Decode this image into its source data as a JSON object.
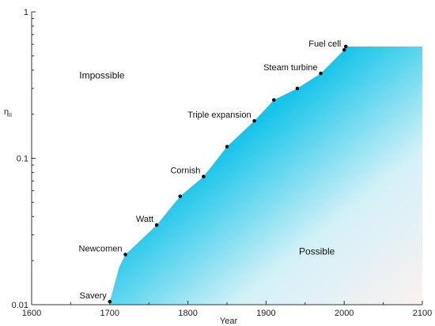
{
  "chart_data": {
    "type": "area",
    "xlabel": "Year",
    "ylabel": "η",
    "ylabel_subscript": "II",
    "xlim": [
      1600,
      2100
    ],
    "ylim": [
      0.01,
      1
    ],
    "yscale": "log",
    "x_ticks": [
      "1600",
      "1700",
      "1800",
      "1900",
      "2000",
      "2100"
    ],
    "y_ticks": [
      "0.01",
      "0.1",
      "1"
    ],
    "grid": false,
    "legend": "none",
    "series": [
      {
        "x": [
          1700,
          1712,
          1720,
          1760,
          1790,
          1820,
          1850,
          1885,
          1910,
          1940,
          1970,
          2000,
          2002,
          2100
        ],
        "y": [
          0.0105,
          0.018,
          0.022,
          0.035,
          0.055,
          0.075,
          0.12,
          0.18,
          0.25,
          0.3,
          0.38,
          0.55,
          0.58,
          0.58
        ]
      }
    ],
    "labelled_points": [
      {
        "label": "Savery",
        "x": 1700,
        "y": 0.0105
      },
      {
        "label": "Newcomen",
        "x": 1720,
        "y": 0.022
      },
      {
        "label": "Watt",
        "x": 1760,
        "y": 0.035
      },
      {
        "label": "Cornish",
        "x": 1820,
        "y": 0.075
      },
      {
        "label": "Triple expansion",
        "x": 1885,
        "y": 0.18
      },
      {
        "label": "Steam turbine",
        "x": 1970,
        "y": 0.38
      },
      {
        "label": "Fuel cell",
        "x": 2000,
        "y": 0.55
      }
    ],
    "unlabelled_points": [
      {
        "x": 1790,
        "y": 0.055
      },
      {
        "x": 1850,
        "y": 0.12
      },
      {
        "x": 1910,
        "y": 0.25
      },
      {
        "x": 1940,
        "y": 0.3
      },
      {
        "x": 2002,
        "y": 0.58
      }
    ],
    "regions": [
      {
        "label": "Impossible",
        "x": 1690,
        "y": 0.35
      },
      {
        "label": "Possible",
        "x": 1965,
        "y": 0.022
      }
    ],
    "colors": {
      "fill_start": "#11c4ec",
      "fill_end": "#fbf1ef",
      "axis": "#333333"
    }
  }
}
